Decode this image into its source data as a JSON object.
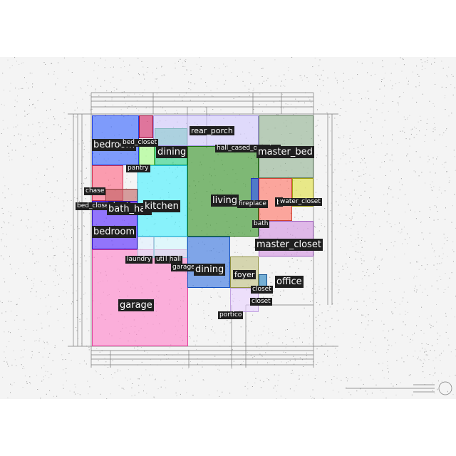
{
  "rooms": [
    {
      "key": "garage",
      "fill": "#ff7fc8",
      "stroke": "#e0409a"
    },
    {
      "key": "bedroom_top",
      "fill": "#2f5fff",
      "stroke": "#1f3fdf"
    },
    {
      "key": "bed_closet",
      "fill": "#d02060",
      "stroke": "#a01040"
    },
    {
      "key": "dining_left",
      "fill": "#20d080",
      "stroke": "#10a060"
    },
    {
      "key": "pantry",
      "fill": "#a0ff80",
      "stroke": "#60c040"
    },
    {
      "key": "kitchen",
      "fill": "#40f0ff",
      "stroke": "#20c0e0"
    },
    {
      "key": "bath_pink",
      "fill": "#ff6080",
      "stroke": "#d03050"
    },
    {
      "key": "bath_hall",
      "fill": "#c06060",
      "stroke": "#904040"
    },
    {
      "key": "bedroom_bottom",
      "fill": "#5020ff",
      "stroke": "#3010c0"
    },
    {
      "key": "living",
      "fill": "#2f8f1f",
      "stroke": "#1f6f10"
    },
    {
      "key": "rear_porch",
      "fill": "#d0c8ff",
      "stroke": "#a090e0"
    },
    {
      "key": "master_bed",
      "fill": "#90b090",
      "stroke": "#608060"
    },
    {
      "key": "fireplace",
      "fill": "#3050ff",
      "stroke": "#2030c0"
    },
    {
      "key": "bath_right",
      "fill": "#ff7060",
      "stroke": "#d04030"
    },
    {
      "key": "water_closet",
      "fill": "#e0e040",
      "stroke": "#a0a010"
    },
    {
      "key": "master_closet",
      "fill": "#d090e0",
      "stroke": "#a060c0"
    },
    {
      "key": "dining_lower",
      "fill": "#3070e0",
      "stroke": "#1050c0"
    },
    {
      "key": "foyer",
      "fill": "#c0c080",
      "stroke": "#909040"
    },
    {
      "key": "portico",
      "fill": "#e8d0ff",
      "stroke": "#c0a0e0"
    },
    {
      "key": "closet_blue",
      "fill": "#2080c0",
      "stroke": "#105090"
    },
    {
      "key": "util_hall",
      "fill": "#d0f8ff",
      "stroke": "#a0d0e0"
    },
    {
      "key": "laundry",
      "fill": "#e0f0ff",
      "stroke": "#b0c8e0"
    }
  ],
  "labels": [
    {
      "key": "bedroom_top",
      "text": "bedroom"
    },
    {
      "key": "bed_closet_top",
      "text": "bed_closet"
    },
    {
      "key": "dining_top",
      "text": "dining"
    },
    {
      "key": "rear_porch",
      "text": "rear_porch"
    },
    {
      "key": "hall_cased_opening",
      "text": "hall_cased_opening"
    },
    {
      "key": "master_bed",
      "text": "master_bed"
    },
    {
      "key": "pantry",
      "text": "pantry"
    },
    {
      "key": "chase",
      "text": "chase"
    },
    {
      "key": "living",
      "text": "living"
    },
    {
      "key": "fireplace",
      "text": "fireplace"
    },
    {
      "key": "bath_right_letter",
      "text": "b"
    },
    {
      "key": "water_closet",
      "text": "water_closet"
    },
    {
      "key": "bed_closet_left",
      "text": "bed_closet"
    },
    {
      "key": "closet_left",
      "text": "closet"
    },
    {
      "key": "bath_hall",
      "text": "bath_hall"
    },
    {
      "key": "kitchen",
      "text": "kitchen"
    },
    {
      "key": "bath_center",
      "text": "bath"
    },
    {
      "key": "bedroom_bottom",
      "text": "bedroom"
    },
    {
      "key": "master_closet",
      "text": "master_closet"
    },
    {
      "key": "laundry",
      "text": "laundry"
    },
    {
      "key": "util_hall",
      "text": "util_hall"
    },
    {
      "key": "util_prefix",
      "text": "l"
    },
    {
      "key": "garage_small",
      "text": "garage"
    },
    {
      "key": "dining_lower",
      "text": "dining"
    },
    {
      "key": "foyer",
      "text": "foyer"
    },
    {
      "key": "office",
      "text": "office"
    },
    {
      "key": "closet_a",
      "text": "closet"
    },
    {
      "key": "closet_b",
      "text": "closet"
    },
    {
      "key": "garage_big",
      "text": "garage"
    },
    {
      "key": "portico",
      "text": "portico"
    }
  ]
}
